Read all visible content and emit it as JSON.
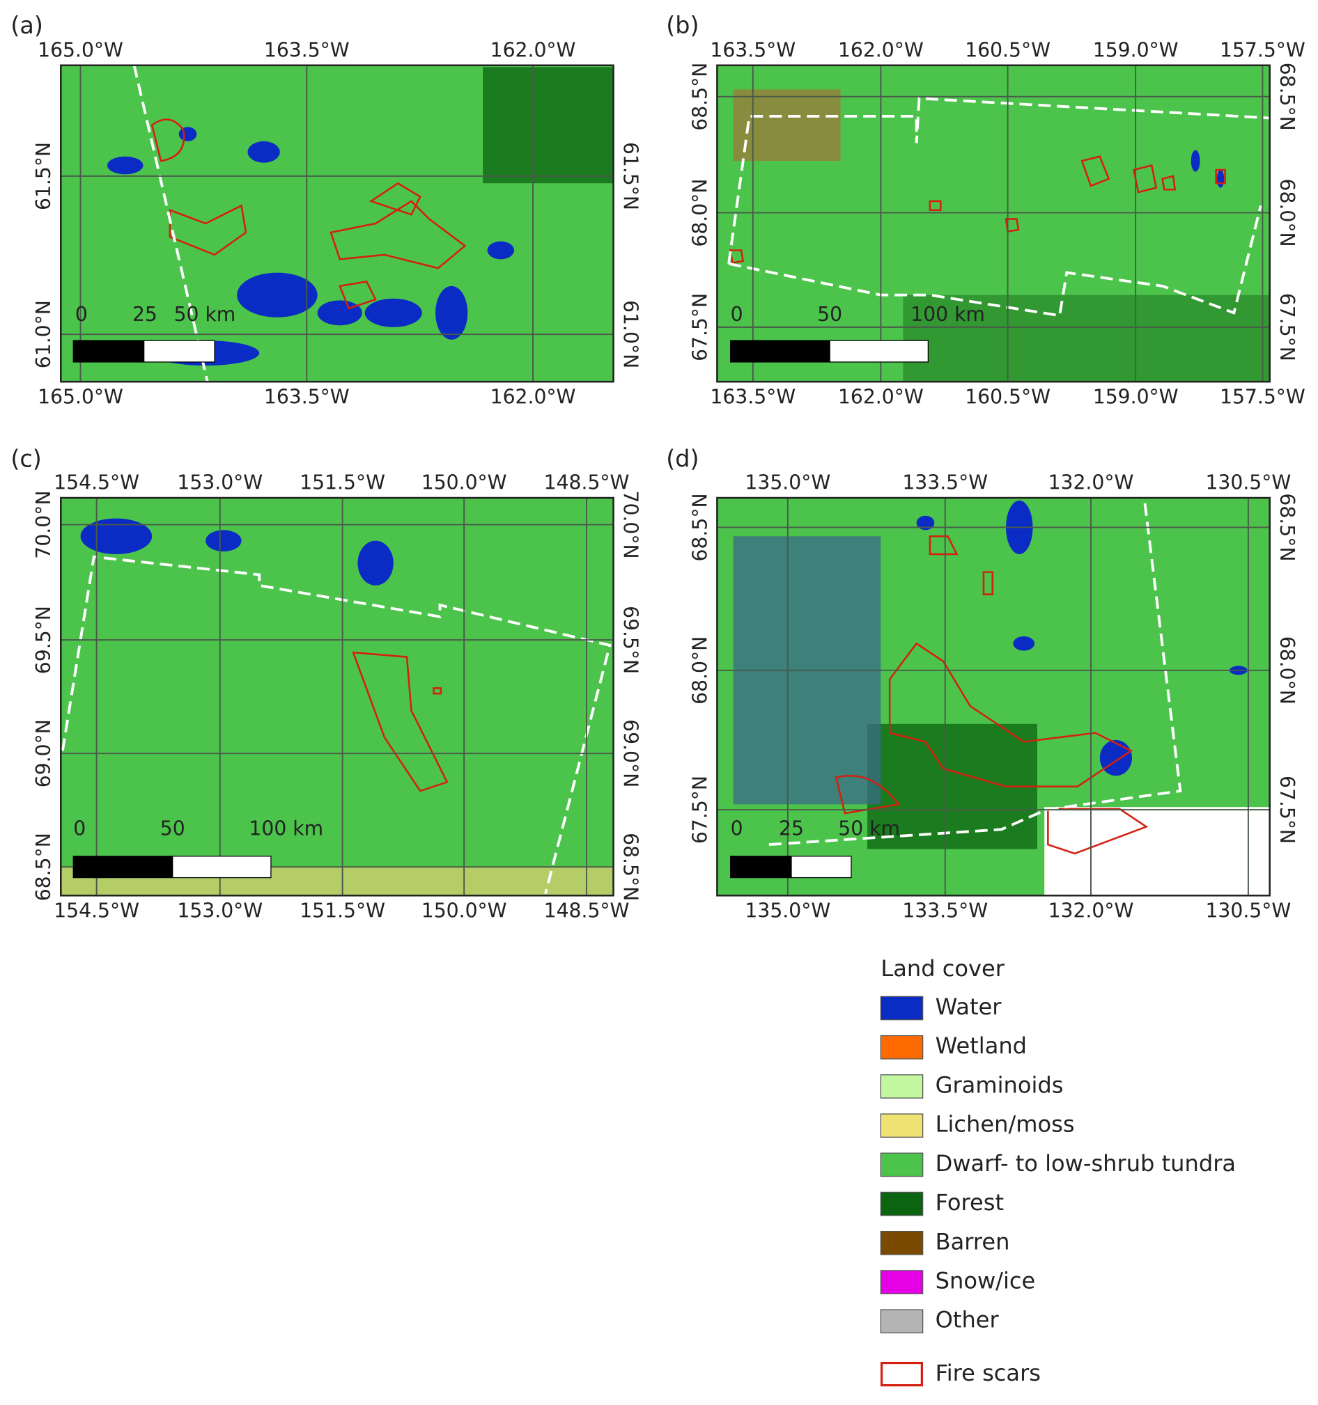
{
  "panels": [
    {
      "label": "(a)",
      "lon_labels": [
        "165.0°W",
        "163.5°W",
        "162.0°W"
      ],
      "lat_labels": [
        "61.5°N",
        "61.0°N"
      ],
      "scale_labels": [
        "0",
        "25",
        "50 km"
      ]
    },
    {
      "label": "(b)",
      "lon_labels": [
        "163.5°W",
        "162.0°W",
        "160.5°W",
        "159.0°W",
        "157.5°W"
      ],
      "lat_labels": [
        "68.5°N",
        "68.0°N",
        "67.5°N"
      ],
      "scale_labels": [
        "0",
        "50",
        "100 km"
      ]
    },
    {
      "label": "(c)",
      "lon_labels": [
        "154.5°W",
        "153.0°W",
        "151.5°W",
        "150.0°W",
        "148.5°W"
      ],
      "lat_labels": [
        "70.0°N",
        "69.5°N",
        "69.0°N",
        "68.5°N"
      ],
      "scale_labels": [
        "0",
        "50",
        "100 km"
      ]
    },
    {
      "label": "(d)",
      "lon_labels": [
        "135.0°W",
        "133.5°W",
        "132.0°W",
        "130.5°W"
      ],
      "lat_labels": [
        "68.5°N",
        "68.0°N",
        "67.5°N"
      ],
      "scale_labels": [
        "0",
        "25",
        "50 km"
      ]
    }
  ],
  "legend": {
    "title": "Land cover",
    "items": [
      {
        "label": "Water",
        "color": "#0a2bc4"
      },
      {
        "label": "Wetland",
        "color": "#ff6a00"
      },
      {
        "label": "Graminoids",
        "color": "#c2f7a0"
      },
      {
        "label": "Lichen/moss",
        "color": "#eee272"
      },
      {
        "label": "Dwarf- to low-shrub tundra",
        "color": "#4cc44c"
      },
      {
        "label": "Forest",
        "color": "#0a6410"
      },
      {
        "label": "Barren",
        "color": "#7a4a00"
      },
      {
        "label": "Snow/ice",
        "color": "#e600e6"
      },
      {
        "label": "Other",
        "color": "#b4b4b4"
      }
    ],
    "fire_scars": {
      "label": "Fire scars",
      "color": "#d42010"
    }
  }
}
